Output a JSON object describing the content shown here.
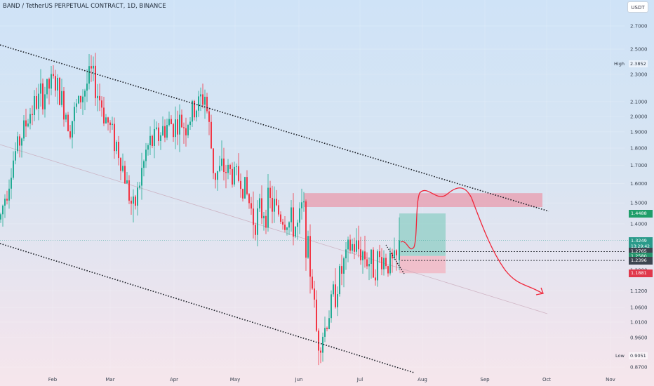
{
  "header": {
    "title": "BAND / TetherUS PERPETUAL CONTRACT, 1D, BINANCE",
    "currency_button": "USDT"
  },
  "price_markers": {
    "high_label": "High",
    "high_value": "2.3852",
    "low_label": "Low",
    "low_value": "0.9051"
  },
  "price_tags": [
    {
      "value": "1.4488",
      "color": "#1f9e6a"
    },
    {
      "value": "1.3249",
      "color": "#2a9a8a",
      "sub": "13:29:42"
    },
    {
      "value": "1.2765",
      "color": "#3c4550"
    },
    {
      "value": "1.2580",
      "color": "#25936b"
    },
    {
      "value": "1.2396",
      "color": "#3c4550"
    },
    {
      "value": "1.1881",
      "color": "#e0384b"
    }
  ],
  "chart_data": {
    "type": "candlestick",
    "xlabel": "",
    "ylabel": "",
    "x_ticks": [
      "Feb",
      "Mar",
      "Apr",
      "May",
      "Jun",
      "Jul",
      "Aug",
      "Sep",
      "Oct",
      "Nov"
    ],
    "y_ticks": [
      "2.7000",
      "2.5000",
      "2.3000",
      "2.1000",
      "2.0000",
      "1.9000",
      "1.8000",
      "1.7000",
      "1.6000",
      "1.5000",
      "1.4000",
      "1.2000",
      "1.1200",
      "1.0600",
      "1.0100",
      "0.9600",
      "0.8700"
    ],
    "ylim": [
      0.87,
      2.75
    ],
    "scale": "log",
    "session_high": 2.3852,
    "session_low": 0.9051,
    "current_price": 1.3249,
    "annotations": {
      "resistance_zone": [
        1.48,
        1.55
      ],
      "long_position": {
        "entry": 1.258,
        "target": 1.4488,
        "stop": 1.1881
      },
      "dotted_levels": [
        1.2765,
        1.2396
      ],
      "trendlines": "descending channel"
    }
  }
}
